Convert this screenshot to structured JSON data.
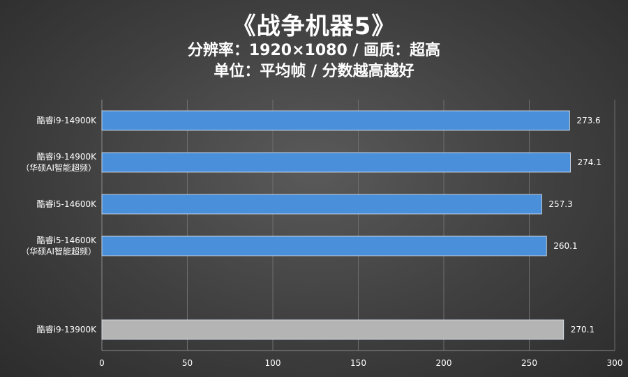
{
  "chart_data": {
    "type": "bar",
    "orientation": "horizontal",
    "title": "《战争机器5》",
    "subtitles": [
      "分辨率：1920×1080 / 画质：超高",
      "单位：平均帧 / 分数越高越好"
    ],
    "categories": [
      [
        "酷睿i9-14900K"
      ],
      [
        "酷睿i9-14900K",
        "（华硕AI智能超频）"
      ],
      [
        "酷睿i5-14600K"
      ],
      [
        "酷睿i5-14600K",
        "（华硕AI智能超频）"
      ],
      [],
      [
        "酷睿i9-13900K"
      ]
    ],
    "values": [
      273.6,
      274.1,
      257.3,
      260.1,
      null,
      270.1
    ],
    "value_labels": [
      "273.6",
      "274.1",
      "257.3",
      "260.1",
      "",
      "270.1"
    ],
    "bar_colors": [
      "#4a8fd9",
      "#4a8fd9",
      "#4a8fd9",
      "#4a8fd9",
      "",
      "#b4b4b4"
    ],
    "xlim": [
      0,
      300
    ],
    "xticks": [
      0,
      50,
      100,
      150,
      200,
      250,
      300
    ],
    "grid": true,
    "legend": "none"
  }
}
